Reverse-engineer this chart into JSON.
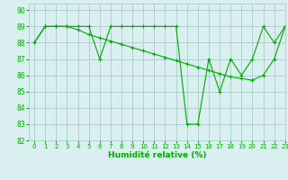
{
  "title": "",
  "xlabel": "Humidité relative (%)",
  "ylabel": "",
  "xlim": [
    -0.5,
    23
  ],
  "ylim": [
    82,
    90.4
  ],
  "yticks": [
    82,
    83,
    84,
    85,
    86,
    87,
    88,
    89,
    90
  ],
  "xticks": [
    0,
    1,
    2,
    3,
    4,
    5,
    6,
    7,
    8,
    9,
    10,
    11,
    12,
    13,
    14,
    15,
    16,
    17,
    18,
    19,
    20,
    21,
    22,
    23
  ],
  "line1_x": [
    0,
    1,
    2,
    3,
    4,
    5,
    6,
    7,
    8,
    9,
    10,
    11,
    12,
    13,
    14,
    15,
    16,
    17,
    18,
    19,
    20,
    21,
    22,
    23
  ],
  "line1_y": [
    88,
    89,
    89,
    89,
    89,
    89,
    87,
    89,
    89,
    89,
    89,
    89,
    89,
    89,
    83,
    83,
    87,
    85,
    87,
    86,
    87,
    89,
    88,
    89
  ],
  "line2_x": [
    0,
    1,
    2,
    3,
    4,
    5,
    6,
    7,
    8,
    9,
    10,
    11,
    12,
    13,
    14,
    15,
    16,
    17,
    18,
    19,
    20,
    21,
    22,
    23
  ],
  "line2_y": [
    88,
    89,
    89,
    89,
    88.8,
    88.5,
    88.3,
    88.1,
    87.9,
    87.7,
    87.5,
    87.3,
    87.1,
    86.9,
    86.7,
    86.5,
    86.3,
    86.1,
    85.9,
    85.8,
    85.7,
    86.0,
    87.0,
    89
  ],
  "line_color": "#00aa00",
  "bg_color": "#daf0f0",
  "grid_color": "#aacccc",
  "marker": "+"
}
